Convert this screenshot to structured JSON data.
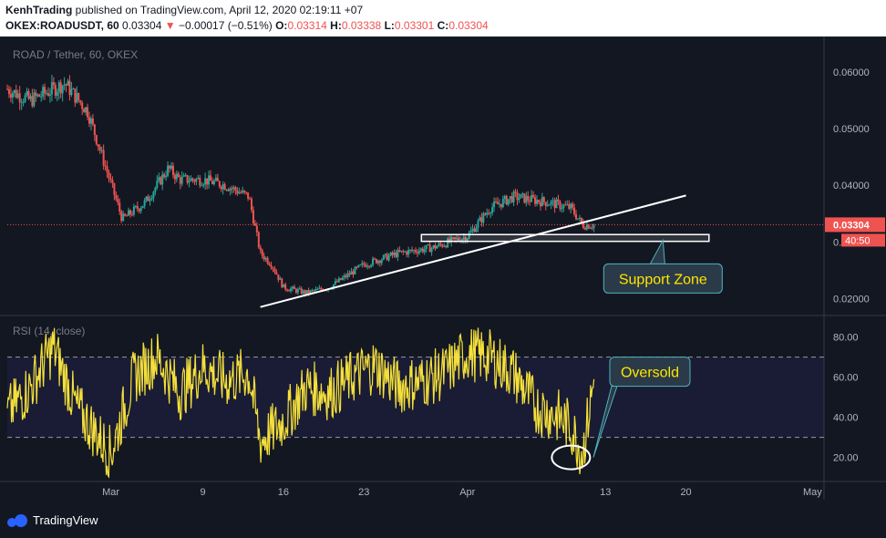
{
  "header": {
    "line1_author": "KenhTrading",
    "line1_rest": " published on TradingView.com, April 12, 2020 02:19:11 +07",
    "symbol": "OKEX:ROADUSDT, 60",
    "last": "0.03304",
    "change_arrow": "▼",
    "change": "−0.00017 (−0.51%)",
    "o_label": "O:",
    "o": "0.03314",
    "h_label": "H:",
    "h": "0.03338",
    "l_label": "L:",
    "l": "0.03301",
    "c_label": "C:",
    "c": "0.03304"
  },
  "footer": {
    "brand": "TradingView"
  },
  "colors": {
    "up": "#26a69a",
    "down": "#ef5350",
    "rsi": "#f5e03b",
    "bg": "#131722",
    "line": "#ffffff",
    "price_label": "#ef5350"
  },
  "chart_data": [
    {
      "type": "candlestick",
      "title": "ROAD / Tether, 60, OKEX",
      "ylim": [
        0.017,
        0.065
      ],
      "y_ticks": [
        "0.06000",
        "0.05000",
        "0.04000",
        "0.03000",
        "0.02000"
      ],
      "y_tick_values": [
        0.06,
        0.05,
        0.04,
        0.03,
        0.02
      ],
      "last_price": "0.03304",
      "last_price_value": 0.03304,
      "countdown": "40:50",
      "x_ticks": [
        "Mar",
        "9",
        "16",
        "23",
        "Apr",
        "13",
        "20",
        "May"
      ],
      "x_tick_dates": [
        "2020-03-01",
        "2020-03-09",
        "2020-03-16",
        "2020-03-23",
        "2020-04-01",
        "2020-04-13",
        "2020-04-20",
        "2020-05-01"
      ],
      "x_range": [
        "2020-02-21",
        "2020-05-02"
      ],
      "path_x": [
        "2020-02-21",
        "2020-02-23",
        "2020-02-26",
        "2020-02-28",
        "2020-03-02",
        "2020-03-04",
        "2020-03-06",
        "2020-03-07",
        "2020-03-09",
        "2020-03-11",
        "2020-03-13",
        "2020-03-14",
        "2020-03-15",
        "2020-03-16",
        "2020-03-18",
        "2020-03-20",
        "2020-03-23",
        "2020-03-26",
        "2020-03-29",
        "2020-04-01",
        "2020-04-03",
        "2020-04-05",
        "2020-04-08",
        "2020-04-10",
        "2020-04-11",
        "2020-04-12"
      ],
      "path_y": [
        0.057,
        0.055,
        0.058,
        0.053,
        0.034,
        0.037,
        0.043,
        0.041,
        0.041,
        0.04,
        0.038,
        0.028,
        0.026,
        0.022,
        0.021,
        0.022,
        0.026,
        0.028,
        0.029,
        0.031,
        0.036,
        0.038,
        0.037,
        0.036,
        0.033,
        0.033
      ],
      "annotations": [
        {
          "type": "trendline",
          "from": [
            "2020-03-14",
            0.0185
          ],
          "to": [
            "2020-04-20",
            0.0382
          ]
        },
        {
          "type": "zone",
          "x": [
            "2020-03-28",
            "2020-04-22"
          ],
          "y": [
            0.0301,
            0.0313
          ]
        },
        {
          "type": "callout",
          "text": "Support Zone",
          "anchor": [
            "2020-04-18",
            0.0303
          ]
        }
      ]
    },
    {
      "type": "line",
      "title": "RSI (14, close)",
      "ylim": [
        8,
        88
      ],
      "y_ticks": [
        "80.00",
        "60.00",
        "40.00",
        "20.00"
      ],
      "y_tick_values": [
        80,
        60,
        40,
        20
      ],
      "bands": [
        30,
        70
      ],
      "path_x": [
        "2020-02-21",
        "2020-02-23",
        "2020-02-25",
        "2020-02-27",
        "2020-03-01",
        "2020-03-03",
        "2020-03-05",
        "2020-03-07",
        "2020-03-09",
        "2020-03-11",
        "2020-03-13",
        "2020-03-14",
        "2020-03-16",
        "2020-03-18",
        "2020-03-20",
        "2020-03-22",
        "2020-03-24",
        "2020-03-26",
        "2020-03-28",
        "2020-03-30",
        "2020-04-01",
        "2020-04-03",
        "2020-04-05",
        "2020-04-07",
        "2020-04-09",
        "2020-04-10",
        "2020-04-11",
        "2020-04-12"
      ],
      "path_y": [
        42,
        55,
        75,
        45,
        22,
        60,
        70,
        52,
        65,
        58,
        62,
        28,
        38,
        55,
        52,
        60,
        66,
        55,
        58,
        62,
        72,
        70,
        62,
        45,
        40,
        35,
        22,
        58
      ],
      "annotations": [
        {
          "type": "ellipse",
          "center": [
            "2020-04-10",
            20
          ]
        },
        {
          "type": "callout",
          "text": "Oversold",
          "anchor": [
            "2020-04-11",
            20
          ]
        }
      ]
    }
  ]
}
